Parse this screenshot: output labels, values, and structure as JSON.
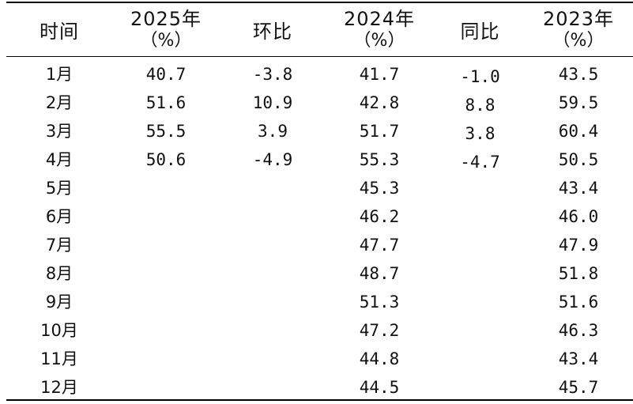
{
  "headers": {
    "time": "时间",
    "y2025": "2025年",
    "y2025_unit": "（%）",
    "mom": "环比",
    "y2024": "2024年",
    "y2024_unit": "（%）",
    "yoy": "同比",
    "y2023": "2023年",
    "y2023_unit": "（%）"
  },
  "rows": [
    {
      "month": "1月",
      "y2025": "40.7",
      "mom": "-3.8",
      "y2024": "41.7",
      "yoy": "-1.0",
      "y2023": "43.5"
    },
    {
      "month": "2月",
      "y2025": "51.6",
      "mom": "10.9",
      "y2024": "42.8",
      "yoy": "8.8",
      "y2023": "59.5"
    },
    {
      "month": "3月",
      "y2025": "55.5",
      "mom": "3.9",
      "y2024": "51.7",
      "yoy": "3.8",
      "y2023": "60.4"
    },
    {
      "month": "4月",
      "y2025": "50.6",
      "mom": "-4.9",
      "y2024": "55.3",
      "yoy": "-4.7",
      "y2023": "50.5"
    },
    {
      "month": "5月",
      "y2025": "",
      "mom": "",
      "y2024": "45.3",
      "yoy": "",
      "y2023": "43.4"
    },
    {
      "month": "6月",
      "y2025": "",
      "mom": "",
      "y2024": "46.2",
      "yoy": "",
      "y2023": "46.0"
    },
    {
      "month": "7月",
      "y2025": "",
      "mom": "",
      "y2024": "47.7",
      "yoy": "",
      "y2023": "47.9"
    },
    {
      "month": "8月",
      "y2025": "",
      "mom": "",
      "y2024": "48.7",
      "yoy": "",
      "y2023": "51.8"
    },
    {
      "month": "9月",
      "y2025": "",
      "mom": "",
      "y2024": "51.3",
      "yoy": "",
      "y2023": "51.6"
    },
    {
      "month": "10月",
      "y2025": "",
      "mom": "",
      "y2024": "47.2",
      "yoy": "",
      "y2023": "46.3"
    },
    {
      "month": "11月",
      "y2025": "",
      "mom": "",
      "y2024": "44.8",
      "yoy": "",
      "y2023": "43.4"
    },
    {
      "month": "12月",
      "y2025": "",
      "mom": "",
      "y2024": "44.5",
      "yoy": "",
      "y2023": "45.7"
    }
  ]
}
